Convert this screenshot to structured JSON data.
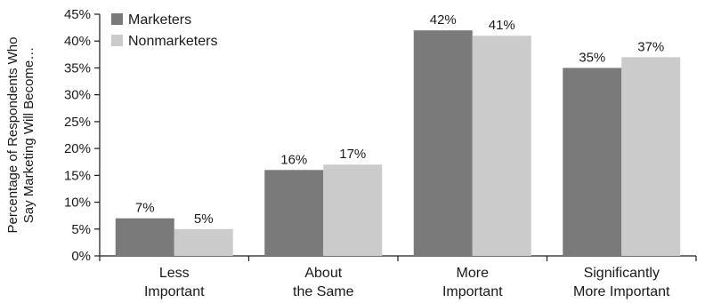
{
  "chart_data": {
    "type": "bar",
    "categories": [
      [
        "Less",
        "Important"
      ],
      [
        "About",
        "the Same"
      ],
      [
        "More",
        "Important"
      ],
      [
        "Significantly",
        "More Important"
      ]
    ],
    "series": [
      {
        "name": "Marketers",
        "values": [
          7,
          16,
          42,
          35
        ],
        "labels": [
          "7%",
          "16%",
          "42%",
          "35%"
        ],
        "color": "#7a7a7a"
      },
      {
        "name": "Nonmarketers",
        "values": [
          5,
          17,
          41,
          37
        ],
        "labels": [
          "5%",
          "17%",
          "41%",
          "37%"
        ],
        "color": "#cbcbcb"
      }
    ],
    "ylim": [
      0,
      45
    ],
    "yticks": [
      0,
      5,
      10,
      15,
      20,
      25,
      30,
      35,
      40,
      45
    ],
    "ytick_labels": [
      "0%",
      "5%",
      "10%",
      "15%",
      "20%",
      "25%",
      "30%",
      "35%",
      "40%",
      "45%"
    ],
    "ylabel": [
      "Percentage of Respondents Who",
      "Say Marketing Will Become…"
    ],
    "xlabel": "",
    "title": "",
    "grid": false,
    "legend_position": "top-left"
  }
}
